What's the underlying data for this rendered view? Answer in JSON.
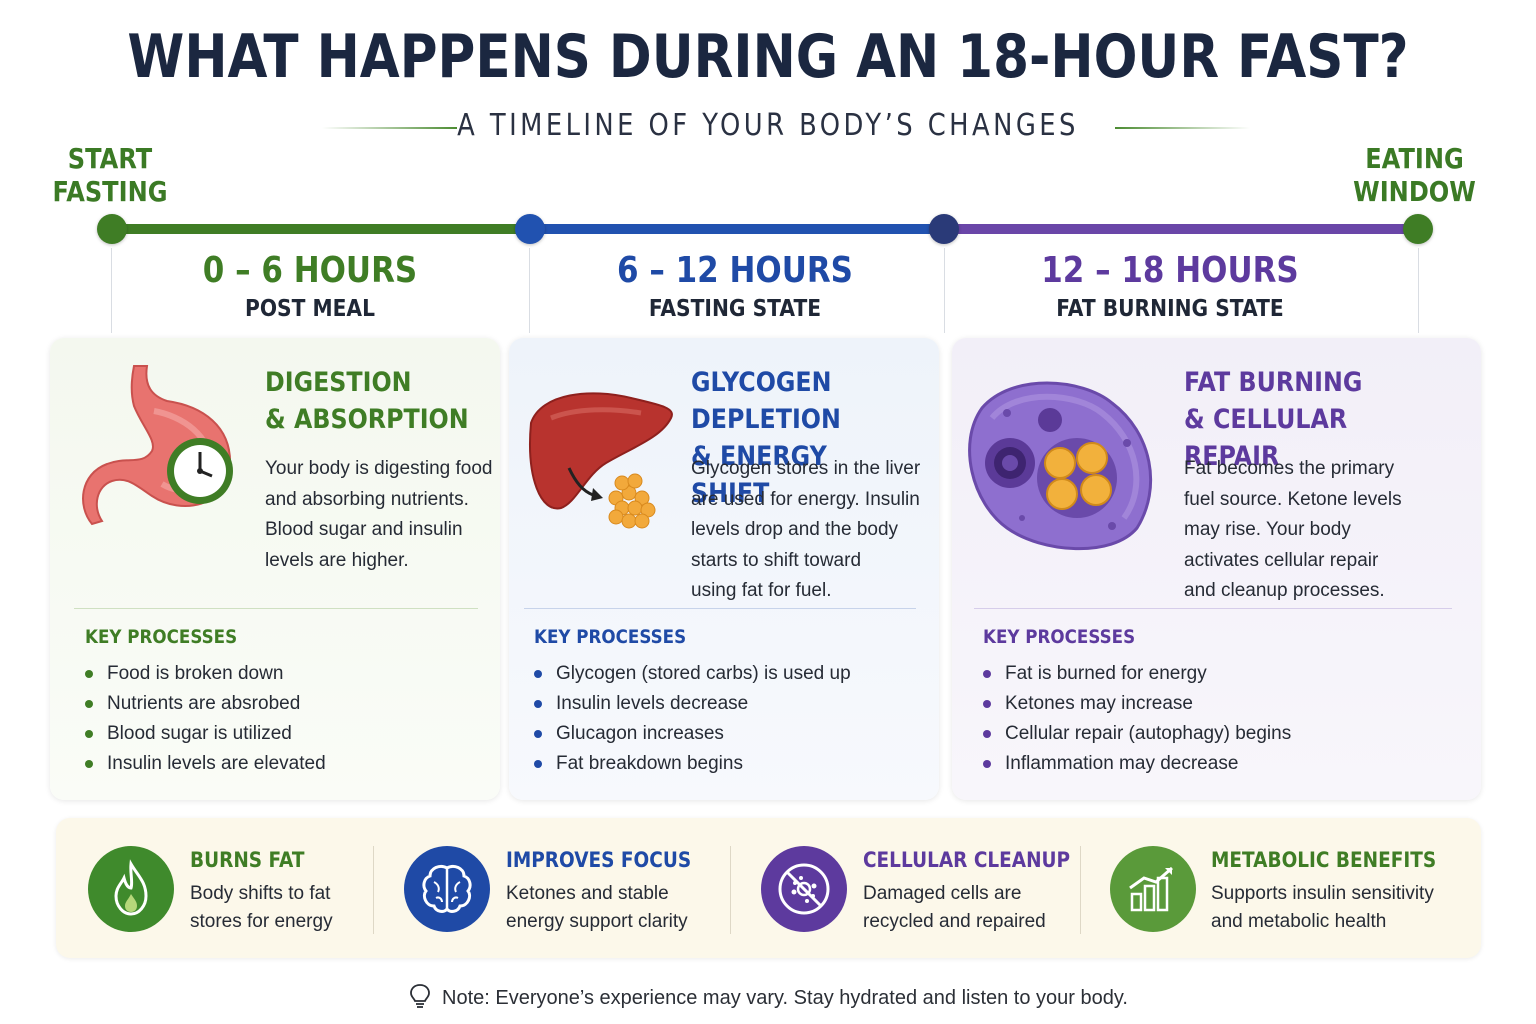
{
  "header": {
    "title": "WHAT HAPPENS DURING AN 18-HOUR FAST?",
    "subtitle": "A TIMELINE OF YOUR BODY’S CHANGES"
  },
  "timeline": {
    "start_label_1": "START",
    "start_label_2": "FASTING",
    "end_label_1": "EATING",
    "end_label_2": "WINDOW"
  },
  "colors": {
    "green": "#3f7d25",
    "blue": "#1f4aa6",
    "purple": "#5d3a9e",
    "navy": "#1b2740"
  },
  "phases": [
    {
      "hours": "0 – 6 HOURS",
      "state": "POST MEAL",
      "icon": "stomach-with-clock-icon",
      "heading_1": "DIGESTION",
      "heading_2": "& ABSORPTION",
      "desc_lines": [
        "Your body is digesting food",
        "and absorbing nutrients.",
        "Blood sugar and insulin",
        "levels are higher."
      ],
      "key_label": "KEY PROCESSES",
      "processes": [
        "Food is broken down",
        "Nutrients are absrobed",
        "Blood sugar is utilized",
        "Insulin levels are elevated"
      ]
    },
    {
      "hours": "6 – 12 HOURS",
      "state": "FASTING STATE",
      "icon": "liver-glycogen-icon",
      "heading_1": "GLYCOGEN DEPLETION",
      "heading_2": "& ENERGY SHIFT",
      "desc_lines": [
        "Glycogen stores in the liver",
        "are used for energy. Insulin",
        "levels drop and the body",
        "starts to shift toward",
        "using fat for fuel."
      ],
      "key_label": "KEY PROCESSES",
      "processes": [
        "Glycogen (stored carbs) is used up",
        "Insulin levels decrease",
        "Glucagon increases",
        "Fat breakdown begins"
      ]
    },
    {
      "hours": "12 – 18 HOURS",
      "state": "FAT BURNING STATE",
      "icon": "fat-cell-icon",
      "heading_1": "FAT BURNING",
      "heading_2": "& CELLULAR REPAIR",
      "desc_lines": [
        "Fat becomes the primary",
        "fuel source. Ketone levels",
        "may rise. Your body",
        "activates cellular repair",
        "and cleanup processes."
      ],
      "key_label": "KEY PROCESSES",
      "processes": [
        "Fat is burned for energy",
        "Ketones may increase",
        "Cellular repair (autophagy) begins",
        "Inflammation may decrease"
      ]
    }
  ],
  "benefits": [
    {
      "icon": "flame-icon",
      "title": "BURNS FAT",
      "line_1": "Body shifts to fat",
      "line_2": "stores for energy"
    },
    {
      "icon": "brain-icon",
      "title": "IMPROVES FOCUS",
      "line_1": "Ketones and stable",
      "line_2": "energy support clarity"
    },
    {
      "icon": "cell-cleanup-icon",
      "title": "CELLULAR CLEANUP",
      "line_1": "Damaged cells are",
      "line_2": "recycled and repaired"
    },
    {
      "icon": "bar-chart-icon",
      "title": "METABOLIC BENEFITS",
      "line_1": "Supports insulin sensitivity",
      "line_2": "and metabolic health"
    }
  ],
  "note": "Note: Everyone’s experience may vary. Stay hydrated and listen to your body."
}
